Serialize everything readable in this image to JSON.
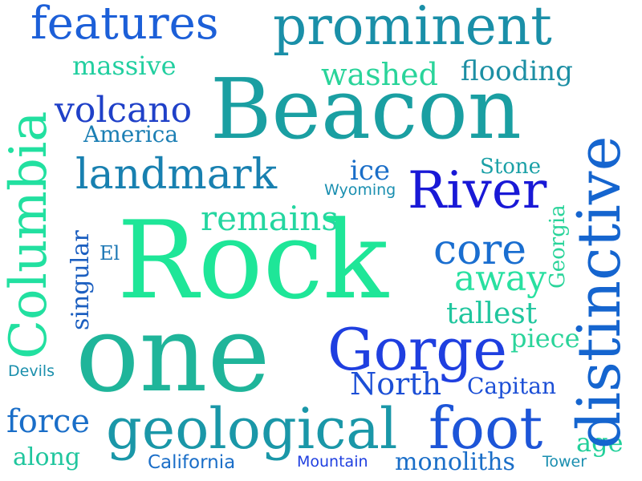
{
  "words": {
    "rock": {
      "text": "Rock",
      "color": "#1ee698"
    },
    "one": {
      "text": "one",
      "color": "#1fb59a"
    },
    "beacon": {
      "text": "Beacon",
      "color": "#1a9fa2"
    },
    "prominent": {
      "text": "prominent",
      "color": "#1a8fa8"
    },
    "features": {
      "text": "features",
      "color": "#1c5fd8"
    },
    "columbia": {
      "text": "Columbia",
      "color": "#22e0a0"
    },
    "distinctive": {
      "text": "distinctive",
      "color": "#1565cf"
    },
    "river": {
      "text": "River",
      "color": "#1919d6"
    },
    "geological": {
      "text": "geological",
      "color": "#1a97a8"
    },
    "gorge": {
      "text": "Gorge",
      "color": "#1f3fe0"
    },
    "foot": {
      "text": "foot",
      "color": "#1d55d8"
    },
    "landmark": {
      "text": "landmark",
      "color": "#1880b0"
    },
    "volcano": {
      "text": "volcano",
      "color": "#1f40c8"
    },
    "washed": {
      "text": "washed",
      "color": "#2ad49a"
    },
    "flooding": {
      "text": "flooding",
      "color": "#1c8fa4"
    },
    "massive": {
      "text": "massive",
      "color": "#22cfa0"
    },
    "remains": {
      "text": "remains",
      "color": "#24d6a0"
    },
    "core": {
      "text": "core",
      "color": "#1a6ed0"
    },
    "away": {
      "text": "away",
      "color": "#28e0a0"
    },
    "tallest": {
      "text": "tallest",
      "color": "#20c69e"
    },
    "piece": {
      "text": "piece",
      "color": "#2ad49a"
    },
    "america": {
      "text": "America",
      "color": "#1c7fb4"
    },
    "ice": {
      "text": "ice",
      "color": "#1a6ec8"
    },
    "stone": {
      "text": "Stone",
      "color": "#1aa0a6"
    },
    "wyoming": {
      "text": "Wyoming",
      "color": "#1a8fb0"
    },
    "georgia": {
      "text": "Georgia",
      "color": "#2ad49a"
    },
    "singular": {
      "text": "singular",
      "color": "#1c5fc0"
    },
    "el": {
      "text": "El",
      "color": "#1c77b4"
    },
    "devils": {
      "text": "Devils",
      "color": "#1a8fac"
    },
    "force": {
      "text": "force",
      "color": "#1a6ec8"
    },
    "along": {
      "text": "along",
      "color": "#20c69e"
    },
    "north": {
      "text": "North",
      "color": "#1c4fd6"
    },
    "capitan": {
      "text": "Capitan",
      "color": "#1c4fd6"
    },
    "california": {
      "text": "California",
      "color": "#1a6ec8"
    },
    "mountain": {
      "text": "Mountain",
      "color": "#1f3fe0"
    },
    "monoliths": {
      "text": "monoliths",
      "color": "#1a6ec8"
    },
    "age": {
      "text": "age",
      "color": "#22d09a"
    },
    "tower": {
      "text": "Tower",
      "color": "#1a8fb0"
    }
  }
}
